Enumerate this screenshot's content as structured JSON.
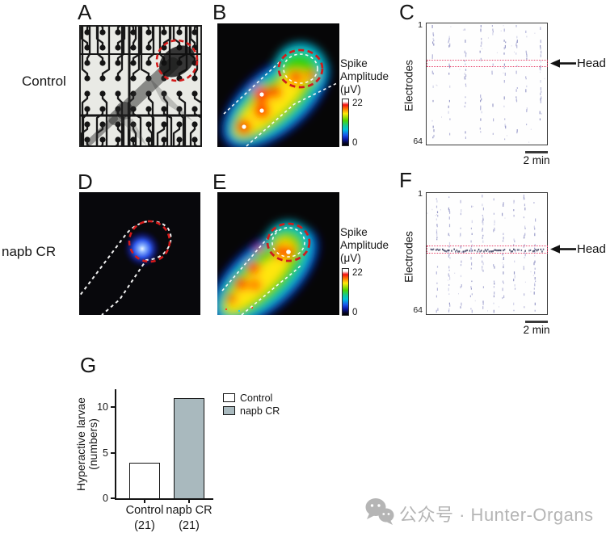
{
  "row_labels": {
    "top": "Control",
    "bottom": "napb CR"
  },
  "panels": {
    "a": {
      "letter": "A",
      "description": "larva on microelectrode array photo"
    },
    "b": {
      "letter": "B",
      "colorbar": {
        "line1": "Spike",
        "line2": "Amplitude",
        "line3": "(μV)",
        "max": "22",
        "min": "0"
      }
    },
    "c": {
      "letter": "C",
      "y_top": "1",
      "y_bottom": "64",
      "ylabel": "Electrodes",
      "head_label": "Head",
      "scalebar_label": "2 min"
    },
    "d": {
      "letter": "D",
      "description": "activity spot at larva head"
    },
    "e": {
      "letter": "E",
      "colorbar": {
        "line1": "Spike",
        "line2": "Amplitude",
        "line3": "(μV)",
        "max": "22",
        "min": "0"
      }
    },
    "f": {
      "letter": "F",
      "y_top": "1",
      "y_bottom": "64",
      "ylabel": "Electrodes",
      "head_label": "Head",
      "scalebar_label": "2 min"
    },
    "g": {
      "letter": "G"
    }
  },
  "chart_data": [
    {
      "panel": "C",
      "type": "scatter",
      "subtype": "spike_raster",
      "condition": "Control",
      "ylabel": "Electrodes",
      "electrode_range": [
        1,
        64
      ],
      "scale_bar": "2 min",
      "annotation": "Head",
      "head_band_center_frac": 0.34,
      "burst_times_frac": [
        0.05,
        0.185,
        0.32,
        0.45,
        0.55,
        0.65,
        0.75,
        0.83,
        0.95
      ],
      "head_row_dense": false
    },
    {
      "panel": "F",
      "type": "scatter",
      "subtype": "spike_raster",
      "condition": "napb CR",
      "ylabel": "Electrodes",
      "electrode_range": [
        1,
        64
      ],
      "scale_bar": "2 min",
      "annotation": "Head",
      "head_band_center_frac": 0.47,
      "burst_times_frac": [
        0.085,
        0.185,
        0.285,
        0.37,
        0.465,
        0.56,
        0.635,
        0.73,
        0.815,
        0.9
      ],
      "head_row_dense": true
    },
    {
      "panel": "G",
      "type": "bar",
      "categories": [
        "Control",
        "napb CR"
      ],
      "n_per_group": [
        "(21)",
        "(21)"
      ],
      "values": [
        4,
        11
      ],
      "ylabel_line1": "Hyperactive larvae",
      "ylabel_line2": "(numbers)",
      "yticks": [
        "0",
        "5",
        "10"
      ],
      "ylim": [
        0,
        12
      ],
      "legend": [
        {
          "label": "Control",
          "fill": "#ffffff"
        },
        {
          "label": "napb CR",
          "fill": "#a9b9be"
        }
      ]
    }
  ],
  "heatmap_scale": {
    "min": 0,
    "max": 22,
    "unit": "μV"
  },
  "colors": {
    "accent_red": "#cf1d1d",
    "head_band_red": "#e8436b",
    "raster_spike": "#b6b7da",
    "raster_head_dense": "#4a4c68",
    "bar_fill_napb": "#a9b9be",
    "watermark_gray": "#b5b5b5"
  },
  "watermark": {
    "text": "公众号 · Hunter-Organs",
    "icon": "wechat-icon"
  }
}
